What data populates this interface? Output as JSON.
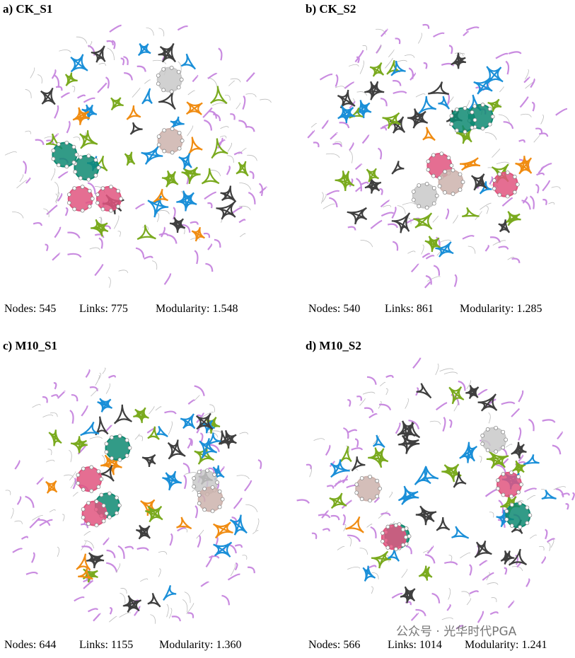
{
  "panels": [
    {
      "title": "a) CK_S1",
      "stats": [
        {
          "label": "Nodes:",
          "value": "545"
        },
        {
          "label": "Links:",
          "value": "775"
        },
        {
          "label": "Modularity:",
          "value": "1.548"
        }
      ]
    },
    {
      "title": "b) CK_S2",
      "stats": [
        {
          "label": "Nodes:",
          "value": "540"
        },
        {
          "label": "Links:",
          "value": "861"
        },
        {
          "label": "Modularity:",
          "value": "1.285"
        }
      ]
    },
    {
      "title": "c) M10_S1",
      "stats": [
        {
          "label": "Nodes:",
          "value": "644"
        },
        {
          "label": "Links:",
          "value": "1155"
        },
        {
          "label": "Modularity:",
          "value": "1.360"
        }
      ]
    },
    {
      "title": "d) M10_S2",
      "stats": [
        {
          "label": "Nodes:",
          "value": "566"
        },
        {
          "label": "Links:",
          "value": "1014"
        },
        {
          "label": "Modularity:",
          "value": "1.241"
        }
      ]
    }
  ],
  "watermark": "公众号 · 光华时代PGA"
}
